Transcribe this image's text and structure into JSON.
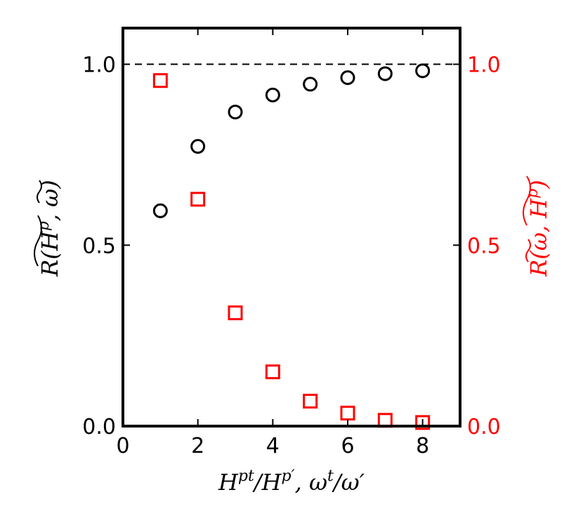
{
  "chart_data": {
    "type": "scatter",
    "xlim": [
      0,
      9
    ],
    "xticks": [
      0,
      2,
      4,
      6,
      8
    ],
    "xtick_labels": [
      "0",
      "2",
      "4",
      "6",
      "8"
    ],
    "xlabel": "H^pt/H^p′, ω^t/ω′",
    "left_axis": {
      "ylim": [
        0,
        1.1
      ],
      "yticks": [
        0.0,
        0.5,
        1.0
      ],
      "ytick_labels": [
        "0.0",
        "0.5",
        "1.0"
      ],
      "ylabel": "R(H^p~, ω~)",
      "color": "#000000"
    },
    "right_axis": {
      "ylim": [
        0,
        1.1
      ],
      "yticks": [
        0.0,
        0.5,
        1.0
      ],
      "ytick_labels": [
        "0.0",
        "0.5",
        "1.0"
      ],
      "ylabel": "R(ω~, H^p~)",
      "color": "#ff0000"
    },
    "reference_line": {
      "y": 1.0,
      "style": "dashed",
      "color": "#000000"
    },
    "grid": false,
    "series": [
      {
        "axis": "left",
        "marker": "circle",
        "color": "#000000",
        "x": [
          1,
          2,
          3,
          4,
          5,
          6,
          7,
          8
        ],
        "y": [
          0.595,
          0.773,
          0.868,
          0.915,
          0.945,
          0.963,
          0.974,
          0.982
        ]
      },
      {
        "axis": "right",
        "marker": "square",
        "color": "#ff0000",
        "x": [
          1,
          2,
          3,
          4,
          5,
          6,
          7,
          8
        ],
        "y": [
          0.955,
          0.627,
          0.313,
          0.15,
          0.069,
          0.036,
          0.016,
          0.01
        ]
      }
    ]
  }
}
